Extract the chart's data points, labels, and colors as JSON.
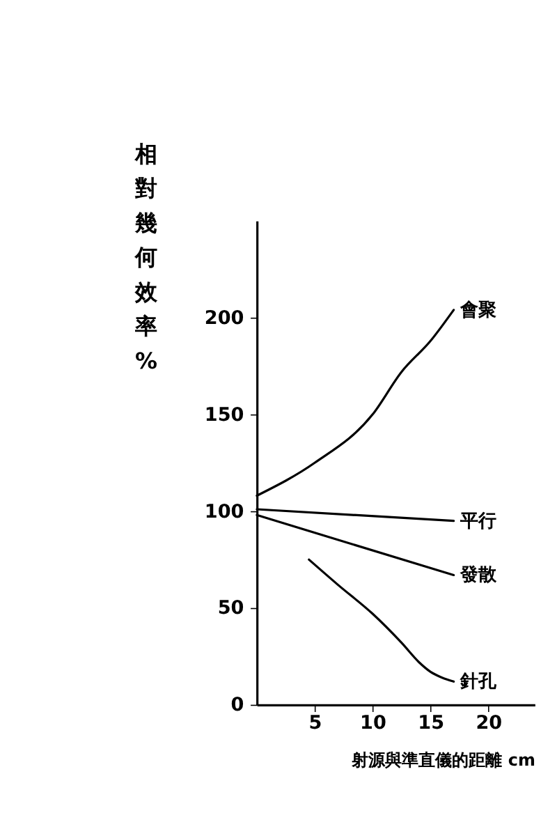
{
  "chart_data": {
    "type": "line",
    "xlabel": "射源與準直儀的距離 cm",
    "ylabel": "相對幾何效率%",
    "xlim": [
      0,
      24
    ],
    "ylim": [
      0,
      250
    ],
    "xticks": [
      5,
      10,
      15,
      20
    ],
    "yticks": [
      0,
      50,
      100,
      150,
      200
    ],
    "grid": false,
    "marker": "none",
    "line_style": "solid",
    "series": [
      {
        "name": "會聚",
        "color": "#000000",
        "x": [
          0,
          5,
          10,
          12.5,
          15,
          17
        ],
        "values": [
          108,
          125,
          150,
          172,
          188,
          204
        ]
      },
      {
        "name": "平行",
        "color": "#000000",
        "x": [
          0,
          17
        ],
        "values": [
          101,
          95
        ]
      },
      {
        "name": "發散",
        "color": "#000000",
        "x": [
          0,
          17
        ],
        "values": [
          98,
          67
        ]
      },
      {
        "name": "針孔",
        "color": "#000000",
        "x": [
          4.5,
          7,
          10,
          12.5,
          14,
          15,
          16,
          17
        ],
        "values": [
          75,
          62,
          47,
          32,
          22,
          17,
          14,
          12
        ]
      }
    ]
  }
}
